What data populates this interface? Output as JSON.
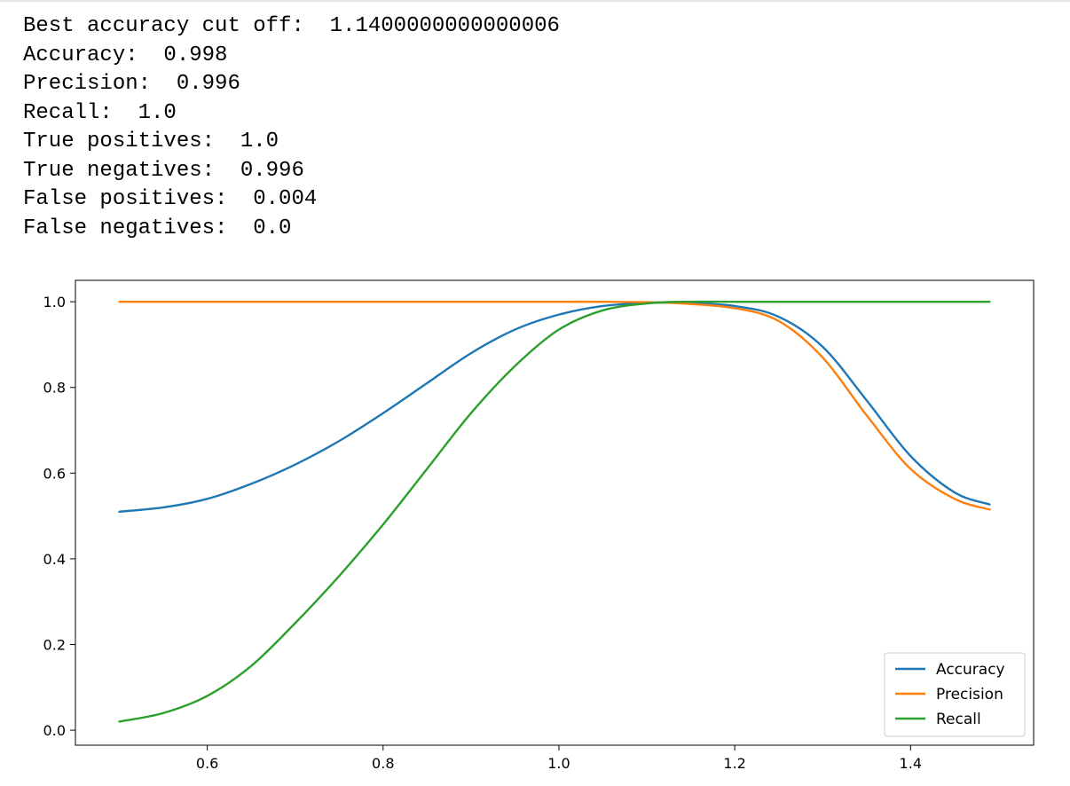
{
  "output": {
    "lines": [
      "Best accuracy cut off:  1.1400000000000006",
      "Accuracy:  0.998",
      "Precision:  0.996",
      "Recall:  1.0",
      "True positives:  1.0",
      "True negatives:  0.996",
      "False positives:  0.004",
      "False negatives:  0.0"
    ]
  },
  "chart_data": {
    "type": "line",
    "xlim": [
      0.45,
      1.54
    ],
    "ylim": [
      -0.035,
      1.05
    ],
    "grid": false,
    "legend_position": "lower-right",
    "x_ticks": [
      0.6,
      0.8,
      1.0,
      1.2,
      1.4
    ],
    "x_tick_labels": [
      "0.6",
      "0.8",
      "1.0",
      "1.2",
      "1.4"
    ],
    "y_ticks": [
      0.0,
      0.2,
      0.4,
      0.6,
      0.8,
      1.0
    ],
    "y_tick_labels": [
      "0.0",
      "0.2",
      "0.4",
      "0.6",
      "0.8",
      "1.0"
    ],
    "x": [
      0.5,
      0.55,
      0.6,
      0.65,
      0.7,
      0.75,
      0.8,
      0.85,
      0.9,
      0.95,
      1.0,
      1.05,
      1.1,
      1.14,
      1.2,
      1.25,
      1.3,
      1.35,
      1.4,
      1.45,
      1.49
    ],
    "series": [
      {
        "name": "Accuracy",
        "color": "#1f77b4",
        "values": [
          0.51,
          0.52,
          0.54,
          0.575,
          0.62,
          0.675,
          0.74,
          0.81,
          0.88,
          0.935,
          0.97,
          0.99,
          0.997,
          0.998,
          0.99,
          0.965,
          0.895,
          0.77,
          0.64,
          0.555,
          0.527
        ]
      },
      {
        "name": "Precision",
        "color": "#ff7f0e",
        "values": [
          1.0,
          1.0,
          1.0,
          1.0,
          1.0,
          1.0,
          1.0,
          1.0,
          1.0,
          1.0,
          1.0,
          1.0,
          0.999,
          0.996,
          0.985,
          0.955,
          0.87,
          0.735,
          0.61,
          0.54,
          0.515
        ]
      },
      {
        "name": "Recall",
        "color": "#2ca02c",
        "values": [
          0.02,
          0.04,
          0.08,
          0.15,
          0.25,
          0.36,
          0.48,
          0.61,
          0.74,
          0.85,
          0.935,
          0.98,
          0.996,
          1.0,
          1.0,
          1.0,
          1.0,
          1.0,
          1.0,
          1.0,
          1.0
        ]
      }
    ]
  }
}
